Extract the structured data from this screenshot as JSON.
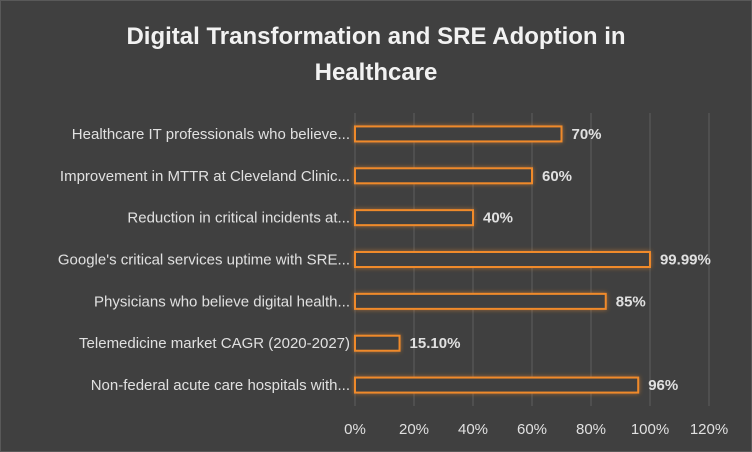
{
  "chart_data": {
    "type": "bar",
    "orientation": "horizontal",
    "title": "Digital Transformation and SRE Adoption in Healthcare",
    "title_lines": [
      "Digital Transformation and SRE Adoption in",
      "Healthcare"
    ],
    "categories": [
      "Healthcare IT professionals who believe...",
      "Improvement in MTTR at Cleveland Clinic...",
      "Reduction in critical incidents at...",
      "Google's critical services uptime with SRE...",
      "Physicians who believe digital health...",
      "Telemedicine market CAGR (2020-2027)",
      "Non-federal acute care hospitals with..."
    ],
    "values": [
      70,
      60,
      40,
      99.99,
      85,
      15.1,
      96
    ],
    "data_labels": [
      "70%",
      "60%",
      "40%",
      "99.99%",
      "85%",
      "15.10%",
      "96%"
    ],
    "xlim": [
      0,
      120
    ],
    "x_ticks": [
      0,
      20,
      40,
      60,
      80,
      100,
      120
    ],
    "x_tick_labels": [
      "0%",
      "20%",
      "40%",
      "60%",
      "80%",
      "100%",
      "120%"
    ],
    "xlabel": "",
    "ylabel": "",
    "grid": true,
    "legend": "none",
    "colors": {
      "background": "#404040",
      "bar_outline": "#f08a2c",
      "text": "#e0e0e0",
      "gridline": "#5e5e5e"
    }
  }
}
